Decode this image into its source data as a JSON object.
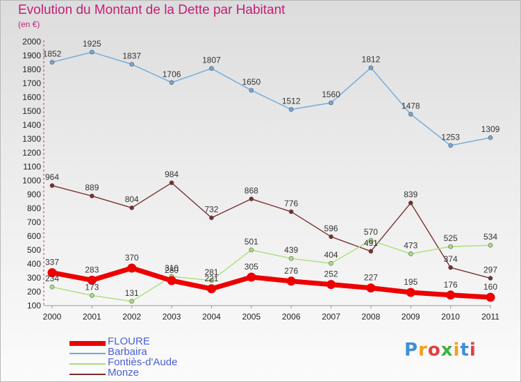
{
  "title": "Evolution du Montant de la Dette par Habitant",
  "subtitle": "(en €)",
  "logo": {
    "text": "Proxiti",
    "colors": [
      "#3f8fd8",
      "#f0a020",
      "#e04040",
      "#40b040",
      "#f0a020",
      "#3f8fd8",
      "#e04040"
    ]
  },
  "chart_data": {
    "type": "line",
    "x": [
      "2000",
      "2001",
      "2002",
      "2003",
      "2004",
      "2005",
      "2006",
      "2007",
      "2008",
      "2009",
      "2010",
      "2011"
    ],
    "ylim": [
      100,
      2000
    ],
    "yticks": [
      100,
      200,
      300,
      400,
      500,
      600,
      700,
      800,
      900,
      1000,
      1100,
      1200,
      1300,
      1400,
      1500,
      1600,
      1700,
      1800,
      1900,
      2000
    ],
    "grid": false,
    "legend": "bottom-left",
    "series": [
      {
        "name": "FLOURE",
        "color": "#ee0000",
        "values": [
          337,
          283,
          370,
          280,
          221,
          305,
          276,
          252,
          227,
          195,
          176,
          160
        ]
      },
      {
        "name": "Barbaira",
        "color": "#6fa8dc",
        "values": [
          1852,
          1925,
          1837,
          1706,
          1807,
          1650,
          1512,
          1560,
          1812,
          1478,
          1253,
          1309
        ]
      },
      {
        "name": "Fontiès-d'Aude",
        "color": "#a8e07a",
        "values": [
          234,
          173,
          131,
          310,
          281,
          501,
          439,
          404,
          570,
          473,
          525,
          534
        ]
      },
      {
        "name": "Monze",
        "color": "#7a2e2e",
        "values": [
          964,
          889,
          804,
          984,
          732,
          868,
          776,
          596,
          491,
          839,
          374,
          297
        ]
      }
    ]
  }
}
